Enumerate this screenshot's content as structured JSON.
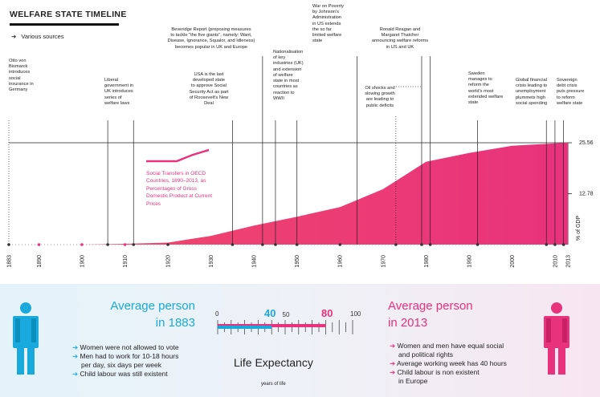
{
  "header": {
    "title": "WELFARE STATE TIMELINE",
    "sources": "Various sources",
    "arrow": "➔"
  },
  "annotations": {
    "bismarck": [
      "Otto von",
      "Bismarck",
      "introduces",
      "social",
      "insurance in",
      "Germany"
    ],
    "liberal": [
      "Liberal",
      "government in",
      "UK introduces",
      "series of",
      "welfare laws"
    ],
    "usa": [
      "USA is the last",
      "developed state",
      "to approve Social",
      "Security Act as part",
      "of Roosevelt's New",
      "Deal"
    ],
    "beveridge": [
      "Beveridge Report (proposing measures",
      "to tackle \"the five giants\", namely: Want,",
      "Disease, Ignorance, Squalor, and Idleness)",
      "becomes popular in UK and Europe"
    ],
    "nationalisation": [
      "Nationalisation",
      "of key",
      "industries (UK)",
      "and extension",
      "of welfare",
      "state in most",
      "countries as",
      "reaction to",
      "WWII"
    ],
    "war_poverty": [
      "War on Poverty",
      "by Johnson's",
      "Administration",
      "in US extends",
      "the so far",
      "limited welfare",
      "state"
    ],
    "oil": [
      "Oil shocks and",
      "slowing growth",
      "are leading to",
      "public deficits"
    ],
    "reagan": [
      "Ronald Reagan and",
      "Margaret Thatcher",
      "announcing welfare reforms",
      "in US and UK"
    ],
    "sweden": [
      "Sweden",
      "manages to",
      "reform the",
      "world's most",
      "extended welfare",
      "state"
    ],
    "gfc": [
      "Global financial",
      "crisis leading to",
      "unemployment",
      "plummets high",
      "social spending"
    ],
    "sovereign": [
      "Sovereign",
      "debt crisis",
      "puts pressure",
      "to reform",
      "welfare state"
    ]
  },
  "chart_data": {
    "type": "area",
    "x": [
      1883,
      1900,
      1910,
      1920,
      1930,
      1940,
      1950,
      1960,
      1970,
      1980,
      1990,
      2000,
      2010,
      2013
    ],
    "values": [
      0,
      0,
      0.2,
      0.5,
      2.2,
      4.8,
      7.0,
      9.4,
      13.9,
      20.8,
      23.0,
      24.8,
      25.4,
      25.56
    ],
    "x_ticks": [
      "1883",
      "1890",
      "1900",
      "1910",
      "1920",
      "1930",
      "1940",
      "1950",
      "1960",
      "1970",
      "1980",
      "1990",
      "2000",
      "2010",
      "2013"
    ],
    "y_ticks": [
      "25.56",
      "12.78"
    ],
    "ylabel": "% of GDP",
    "ylim": [
      0,
      25.56
    ],
    "series_name": "Social Transfers in OECD Countries, 1890–2013, as Percentages of Gross Domestic Product at Current Prices",
    "color": "#e8327c",
    "color_light": "#f24a6a"
  },
  "bottom": {
    "left_title": [
      "Average person",
      "in 1883"
    ],
    "right_title": [
      "Average person",
      "in 2013"
    ],
    "left_facts": [
      "Women were not allowed to vote",
      "Men had to work for 10-18 hours",
      "per day, six days per week",
      "Child labour was still existent"
    ],
    "right_facts": [
      "Women and men have equal social",
      "and political rights",
      "Average working week has 40 hours",
      "Child labour is non existent",
      "in Europe"
    ],
    "life_title": "Life Expectancy",
    "life_sub": "years of life",
    "scale": [
      "0",
      "50",
      "100"
    ],
    "le_1883": "40",
    "le_2013": "80",
    "blue": "#1aa9dc",
    "pink": "#e8327c"
  }
}
